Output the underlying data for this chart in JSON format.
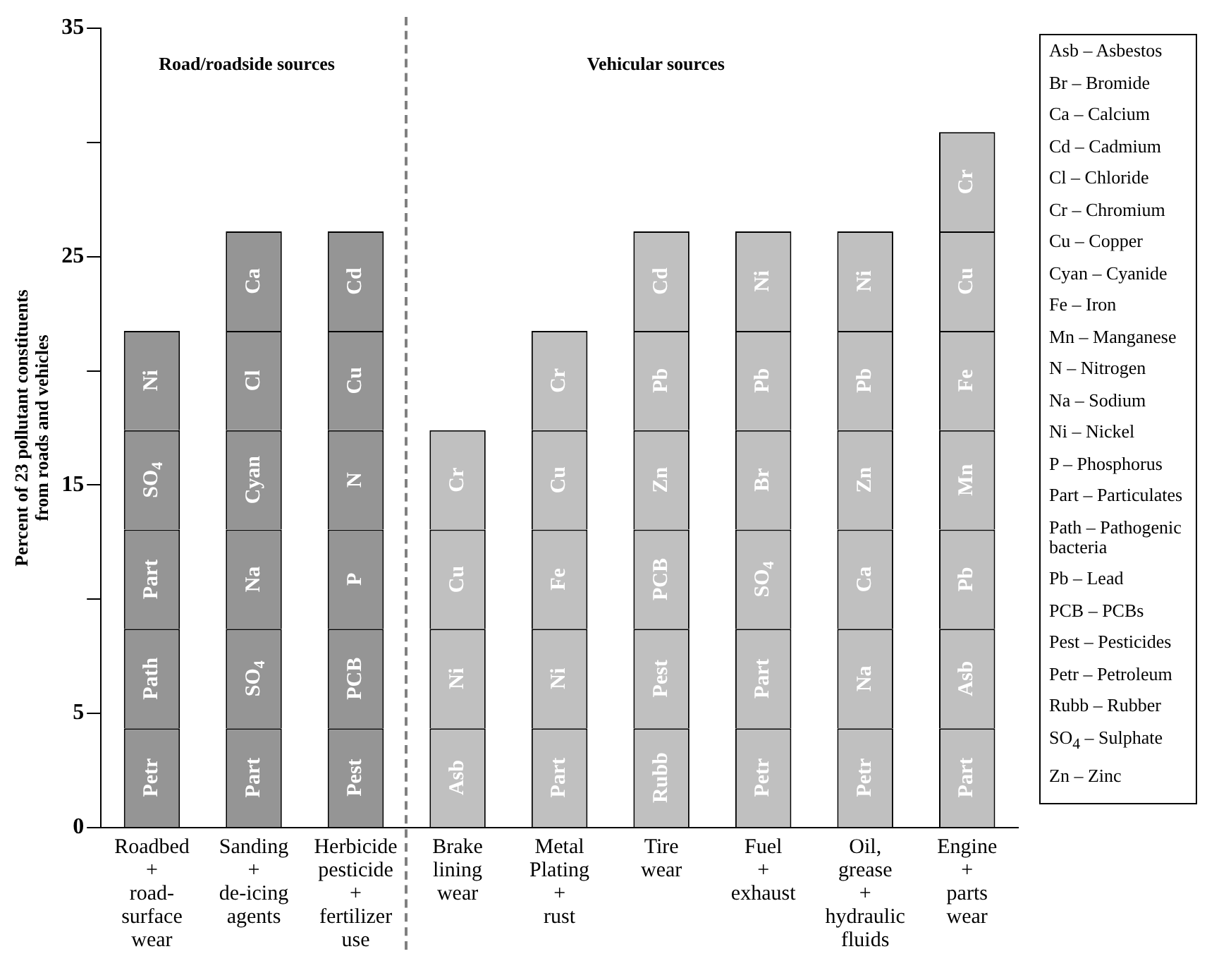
{
  "chart_data": {
    "type": "bar",
    "stacked": true,
    "ylabel": "Percent of 23 pollutant constituents\nfrom roads and vehicles",
    "categories": [
      "Roadbed\n+\nroad-\nsurface\nwear",
      "Sanding\n+\nde-icing\nagents",
      "Herbicide\npesticide\n+\nfertilizer\nuse",
      "Brake\nlining\nwear",
      "Metal\nPlating\n+\nrust",
      "Tire\nwear",
      "Fuel\n+\nexhaust",
      "Oil,\ngrease\n+\nhydraulic\nfluids",
      "Engine\n+\nparts\nwear"
    ],
    "ylim": [
      0,
      35
    ],
    "yticks": [
      0,
      5,
      {
        "value": 10,
        "label": null
      },
      15,
      {
        "value": 20,
        "label": null
      },
      25,
      {
        "value": 30,
        "label": null
      },
      35
    ],
    "grid": false,
    "legend": false,
    "series": [
      {
        "values": [
          4.35,
          4.35,
          4.35,
          4.35,
          4.35,
          4.35,
          4.35,
          4.35,
          4.35
        ],
        "colors": [
          "#959595",
          "#959595",
          "#959595",
          "#c0c0c0",
          "#c0c0c0",
          "#c0c0c0",
          "#c0c0c0",
          "#c0c0c0",
          "#c0c0c0"
        ],
        "value_labels": [
          "Petr",
          "Part",
          "Pest",
          "Asb",
          "Part",
          "Rubb",
          "Petr",
          "Petr",
          "Part"
        ]
      },
      {
        "values": [
          4.35,
          4.35,
          4.35,
          4.35,
          4.35,
          4.35,
          4.35,
          4.35,
          4.35
        ],
        "colors": [
          "#959595",
          "#959595",
          "#959595",
          "#c0c0c0",
          "#c0c0c0",
          "#c0c0c0",
          "#c0c0c0",
          "#c0c0c0",
          "#c0c0c0"
        ],
        "value_labels": [
          "Path",
          "SO$_{4}$",
          "PCB",
          "Ni",
          "Ni",
          "Pest",
          "Part",
          "Na",
          "Asb"
        ]
      },
      {
        "values": [
          4.35,
          4.35,
          4.35,
          4.35,
          4.35,
          4.35,
          4.35,
          4.35,
          4.35
        ],
        "colors": [
          "#959595",
          "#959595",
          "#959595",
          "#c0c0c0",
          "#c0c0c0",
          "#c0c0c0",
          "#c0c0c0",
          "#c0c0c0",
          "#c0c0c0"
        ],
        "value_labels": [
          "Part",
          "Na",
          "P",
          "Cu",
          "Fe",
          "PCB",
          "SO$_{4}$",
          "Ca",
          "Pb"
        ]
      },
      {
        "values": [
          4.35,
          4.35,
          4.35,
          4.35,
          4.35,
          4.35,
          4.35,
          4.35,
          4.35
        ],
        "colors": [
          "#959595",
          "#959595",
          "#959595",
          "#c0c0c0",
          "#c0c0c0",
          "#c0c0c0",
          "#c0c0c0",
          "#c0c0c0",
          "#c0c0c0"
        ],
        "value_labels": [
          "SO$_{4}$",
          "Cyan",
          "N",
          "Cr",
          "Cu",
          "Zn",
          "Br",
          "Zn",
          "Mn"
        ]
      },
      {
        "values": [
          4.35,
          4.35,
          4.35,
          null,
          4.35,
          4.35,
          4.35,
          4.35,
          4.35
        ],
        "colors": [
          "#959595",
          "#959595",
          "#959595",
          "#c0c0c0",
          "#c0c0c0",
          "#c0c0c0",
          "#c0c0c0",
          "#c0c0c0",
          "#c0c0c0"
        ],
        "value_labels": [
          "Ni",
          "Cl",
          "Cu",
          null,
          "Cr",
          "Pb",
          "Pb",
          "Pb",
          "Fe"
        ]
      },
      {
        "values": [
          null,
          4.35,
          4.35,
          null,
          null,
          4.35,
          4.35,
          4.35,
          4.35
        ],
        "colors": [
          "#959595",
          "#959595",
          "#959595",
          "#c0c0c0",
          "#c0c0c0",
          "#c0c0c0",
          "#c0c0c0",
          "#c0c0c0",
          "#c0c0c0"
        ],
        "value_labels": [
          null,
          "Ca",
          "Cd",
          null,
          null,
          "Cd",
          "Ni",
          "Ni",
          "Cu"
        ]
      },
      {
        "values": [
          null,
          null,
          null,
          null,
          null,
          null,
          null,
          null,
          4.35
        ],
        "colors": [
          "#959595",
          "#959595",
          "#959595",
          "#c0c0c0",
          "#c0c0c0",
          "#c0c0c0",
          "#c0c0c0",
          "#c0c0c0",
          "#c0c0c0"
        ],
        "value_labels": [
          null,
          null,
          null,
          null,
          null,
          null,
          null,
          null,
          "Cr"
        ]
      }
    ],
    "annotations": [
      "Road/roadside sources",
      "Vehicular sources",
      "Asb – Asbestos",
      "Br – Bromide",
      "Ca – Calcium",
      "Cd – Cadmium",
      "Cl – Chloride",
      "Cr – Chromium",
      "Cu – Copper",
      "Cyan – Cyanide",
      "Fe – Iron",
      "Mn – Manganese",
      "N – Nitrogen",
      "Na – Sodium",
      "Ni – Nickel",
      "P – Phosphorus",
      "Part – Particulates",
      "Path – Pathogenic bacteria",
      "Pb – Lead",
      "PCB – PCBs",
      "Pest – Pesticides",
      "Petr – Petroleum",
      "Rubb – Rubber",
      "SO$_{4}$ – Sulphate",
      "Zn – Zinc"
    ]
  }
}
